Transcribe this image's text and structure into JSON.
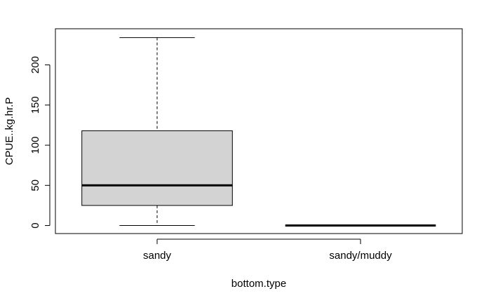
{
  "chart_data": {
    "type": "boxplot",
    "title": "",
    "xlabel": "bottom.type",
    "ylabel": "CPUE..kg.hr.P",
    "categories": [
      "sandy",
      "sandy/muddy"
    ],
    "ylim": [
      -10,
      245
    ],
    "yticks": [
      0,
      50,
      100,
      150,
      200
    ],
    "boxes": [
      {
        "category": "sandy",
        "min": 0,
        "q1": 25,
        "median": 50,
        "q3": 118,
        "max": 234
      },
      {
        "category": "sandy/muddy",
        "min": 0,
        "q1": 0,
        "median": 0,
        "q3": 0,
        "max": 0
      }
    ],
    "colors": {
      "box_fill": "#d3d3d3",
      "stroke": "#000000"
    },
    "grid": false,
    "legend": "none"
  }
}
